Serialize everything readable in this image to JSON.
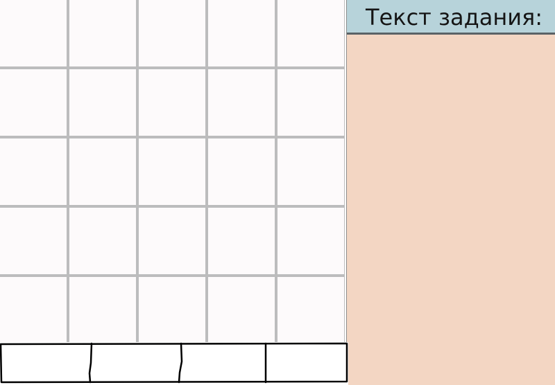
{
  "task_panel": {
    "title": "Текст задания:",
    "body_text": ""
  },
  "grid": {
    "rows": 5,
    "columns": 5
  },
  "answer_strip": {
    "slots": 4
  },
  "colors": {
    "panel_background": "#f3d6c3",
    "header_background": "#b7d3da",
    "grid_lines": "#bcbcbd",
    "cell_background": "#fdfafb"
  }
}
